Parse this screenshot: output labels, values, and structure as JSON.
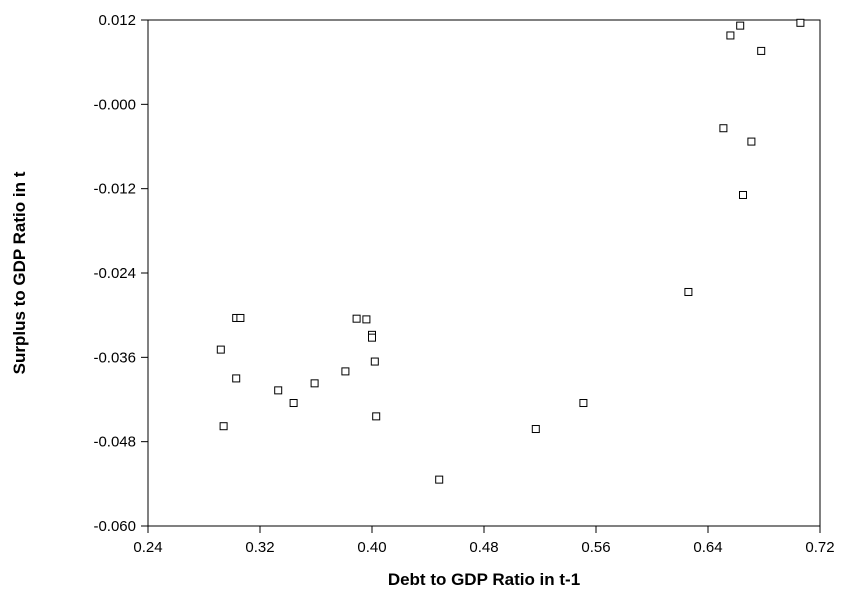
{
  "chart_data": {
    "type": "scatter",
    "xlabel": "Debt to GDP Ratio in t-1",
    "ylabel": "Surplus to GDP Ratio in t",
    "xlim": [
      0.24,
      0.72
    ],
    "ylim": [
      -0.06,
      0.012
    ],
    "x_ticks": [
      "0.24",
      "0.32",
      "0.40",
      "0.48",
      "0.56",
      "0.64",
      "0.72"
    ],
    "x_tick_values": [
      0.24,
      0.32,
      0.4,
      0.48,
      0.56,
      0.64,
      0.72
    ],
    "y_ticks": [
      "0.012",
      "-0.000",
      "-0.012",
      "-0.024",
      "-0.036",
      "-0.048",
      "-0.060"
    ],
    "y_tick_values": [
      0.012,
      0.0,
      -0.012,
      -0.024,
      -0.036,
      -0.048,
      -0.06
    ],
    "grid": false,
    "marker": "open-square",
    "points": [
      {
        "x": 0.292,
        "y": -0.0349
      },
      {
        "x": 0.294,
        "y": -0.0458
      },
      {
        "x": 0.303,
        "y": -0.0304
      },
      {
        "x": 0.306,
        "y": -0.0304
      },
      {
        "x": 0.303,
        "y": -0.039
      },
      {
        "x": 0.333,
        "y": -0.0407
      },
      {
        "x": 0.344,
        "y": -0.0425
      },
      {
        "x": 0.359,
        "y": -0.0397
      },
      {
        "x": 0.381,
        "y": -0.038
      },
      {
        "x": 0.389,
        "y": -0.0305
      },
      {
        "x": 0.396,
        "y": -0.0306
      },
      {
        "x": 0.4,
        "y": -0.0328
      },
      {
        "x": 0.4,
        "y": -0.0332
      },
      {
        "x": 0.402,
        "y": -0.0366
      },
      {
        "x": 0.403,
        "y": -0.0444
      },
      {
        "x": 0.448,
        "y": -0.0534
      },
      {
        "x": 0.517,
        "y": -0.0462
      },
      {
        "x": 0.551,
        "y": -0.0425
      },
      {
        "x": 0.626,
        "y": -0.0267
      },
      {
        "x": 0.651,
        "y": -0.0034
      },
      {
        "x": 0.656,
        "y": 0.0098
      },
      {
        "x": 0.663,
        "y": 0.0112
      },
      {
        "x": 0.665,
        "y": -0.0129
      },
      {
        "x": 0.671,
        "y": -0.0053
      },
      {
        "x": 0.678,
        "y": 0.0076
      },
      {
        "x": 0.706,
        "y": 0.0116
      }
    ]
  }
}
